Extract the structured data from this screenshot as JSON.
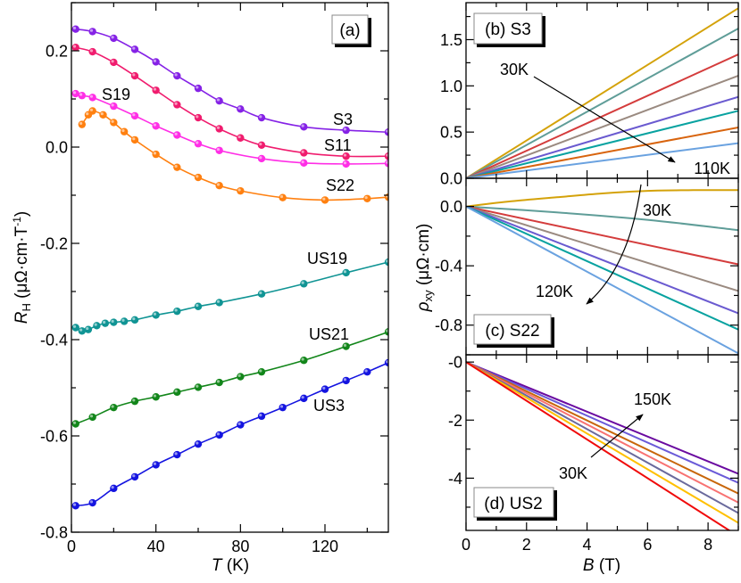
{
  "chart_data": [
    {
      "type": "line",
      "panel_label": "(a)",
      "xlabel": "T (K)",
      "xlabel_italic": "T",
      "xlabel_unit": " (K)",
      "ylabel_main": "R",
      "ylabel_sub": "H",
      "ylabel_unit": " (μΩ·cm·T",
      "ylabel_sup": "-1",
      "ylabel_close": ")",
      "xlim": [
        0,
        150
      ],
      "ylim": [
        -0.8,
        0.3
      ],
      "xticks": [
        0,
        40,
        80,
        120
      ],
      "xtick_labels": [
        "0",
        "40",
        "80",
        "120"
      ],
      "yticks": [
        0.2,
        0.0,
        -0.2,
        -0.4,
        -0.6,
        -0.8
      ],
      "ytick_labels": [
        "0.2",
        "0.0",
        "-0.2",
        "-0.4",
        "-0.6",
        "-0.8"
      ],
      "markers": true,
      "series": [
        {
          "name": "S3",
          "color": "#8522e6",
          "x": [
            2,
            10,
            20,
            30,
            40,
            50,
            60,
            70,
            80,
            90,
            110,
            130,
            150
          ],
          "y": [
            0.245,
            0.24,
            0.226,
            0.203,
            0.177,
            0.148,
            0.122,
            0.096,
            0.079,
            0.061,
            0.042,
            0.035,
            0.031
          ]
        },
        {
          "name": "S11",
          "color": "#f01c6e",
          "x": [
            2,
            10,
            20,
            30,
            40,
            50,
            60,
            70,
            80,
            90,
            110,
            130,
            150
          ],
          "y": [
            0.207,
            0.198,
            0.176,
            0.148,
            0.118,
            0.088,
            0.061,
            0.038,
            0.019,
            0.004,
            -0.012,
            -0.019,
            -0.019
          ]
        },
        {
          "name": "S19",
          "color": "#ff2ee6",
          "x": [
            2,
            5,
            10,
            20,
            30,
            40,
            50,
            60,
            70,
            90,
            110,
            130,
            150
          ],
          "y": [
            0.111,
            0.107,
            0.103,
            0.085,
            0.065,
            0.044,
            0.025,
            0.007,
            -0.007,
            -0.024,
            -0.033,
            -0.035,
            -0.034
          ]
        },
        {
          "name": "S22",
          "color": "#ff8010",
          "x": [
            5,
            8,
            10,
            15,
            20,
            25,
            30,
            40,
            50,
            60,
            70,
            80,
            100,
            120,
            140,
            150
          ],
          "y": [
            0.047,
            0.067,
            0.075,
            0.067,
            0.051,
            0.032,
            0.015,
            -0.015,
            -0.042,
            -0.063,
            -0.08,
            -0.091,
            -0.105,
            -0.11,
            -0.107,
            -0.104
          ]
        },
        {
          "name": "US19",
          "color": "#109494",
          "x": [
            2,
            5,
            8,
            12,
            16,
            20,
            25,
            30,
            40,
            50,
            60,
            70,
            90,
            110,
            130,
            150
          ],
          "y": [
            -0.375,
            -0.382,
            -0.379,
            -0.371,
            -0.366,
            -0.364,
            -0.362,
            -0.359,
            -0.349,
            -0.341,
            -0.331,
            -0.323,
            -0.305,
            -0.284,
            -0.261,
            -0.239
          ]
        },
        {
          "name": "US21",
          "color": "#12861a",
          "x": [
            2,
            10,
            20,
            30,
            40,
            50,
            60,
            70,
            80,
            90,
            110,
            130,
            150
          ],
          "y": [
            -0.575,
            -0.561,
            -0.541,
            -0.528,
            -0.519,
            -0.509,
            -0.499,
            -0.489,
            -0.477,
            -0.467,
            -0.443,
            -0.414,
            -0.384
          ]
        },
        {
          "name": "US3",
          "color": "#1414e0",
          "x": [
            2,
            10,
            20,
            30,
            40,
            50,
            60,
            70,
            80,
            90,
            100,
            110,
            120,
            130,
            140,
            150
          ],
          "y": [
            -0.745,
            -0.739,
            -0.709,
            -0.685,
            -0.66,
            -0.639,
            -0.617,
            -0.598,
            -0.577,
            -0.559,
            -0.541,
            -0.522,
            -0.503,
            -0.485,
            -0.467,
            -0.448
          ]
        }
      ]
    },
    {
      "type": "line",
      "panel_label": "(b) S3",
      "xlim": [
        0,
        9
      ],
      "ylim": [
        0,
        1.9
      ],
      "yticks": [
        0.0,
        0.5,
        1.0,
        1.5
      ],
      "ytick_labels": [
        "0.0",
        "0.5",
        "1.0",
        "1.5"
      ],
      "annotations": [
        "30K",
        "110K"
      ],
      "series": [
        {
          "color": "#d4a20a",
          "x": [
            0,
            9
          ],
          "y": [
            0,
            1.84
          ]
        },
        {
          "color": "#5f9d98",
          "x": [
            0,
            9
          ],
          "y": [
            0,
            1.62
          ]
        },
        {
          "color": "#d43c3c",
          "x": [
            0,
            9
          ],
          "y": [
            0,
            1.34
          ]
        },
        {
          "color": "#9a8a80",
          "x": [
            0,
            9
          ],
          "y": [
            0,
            1.11
          ]
        },
        {
          "color": "#6a5ad0",
          "x": [
            0,
            9
          ],
          "y": [
            0,
            0.88
          ]
        },
        {
          "color": "#08a2a0",
          "x": [
            0,
            9
          ],
          "y": [
            0,
            0.73
          ]
        },
        {
          "color": "#d8640e",
          "x": [
            0,
            9
          ],
          "y": [
            0,
            0.55
          ]
        },
        {
          "color": "#6aa2e0",
          "x": [
            0,
            9
          ],
          "y": [
            0,
            0.38
          ]
        }
      ]
    },
    {
      "type": "line",
      "panel_label": "(c) S22",
      "ylabel_main": "ρ",
      "ylabel_sub": "xy",
      "ylabel_unit": " (μΩ·cm)",
      "xlim": [
        0,
        9
      ],
      "ylim": [
        -1.0,
        0.19
      ],
      "yticks": [
        0.0,
        -0.4,
        -0.8
      ],
      "ytick_labels": [
        "0.0",
        "-0.4",
        "-0.8"
      ],
      "annotations": [
        "30K",
        "120K"
      ],
      "series": [
        {
          "color": "#d4a20a",
          "x": [
            0,
            1.5,
            3,
            4.5,
            6,
            7.5,
            9
          ],
          "y": [
            0,
            0.035,
            0.062,
            0.088,
            0.105,
            0.11,
            0.11
          ]
        },
        {
          "color": "#5f9d98",
          "x": [
            0,
            3,
            6,
            9
          ],
          "y": [
            0,
            -0.04,
            -0.09,
            -0.16
          ]
        },
        {
          "color": "#d43c3c",
          "x": [
            0,
            9
          ],
          "y": [
            0,
            -0.39
          ]
        },
        {
          "color": "#9a8a80",
          "x": [
            0,
            9
          ],
          "y": [
            0,
            -0.57
          ]
        },
        {
          "color": "#6a5ad0",
          "x": [
            0,
            9
          ],
          "y": [
            0,
            -0.72
          ]
        },
        {
          "color": "#08a2a0",
          "x": [
            0,
            9
          ],
          "y": [
            0,
            -0.83
          ]
        },
        {
          "color": "#6aa2e0",
          "x": [
            0,
            9
          ],
          "y": [
            0,
            -0.99
          ]
        }
      ]
    },
    {
      "type": "line",
      "panel_label": "(d) US2",
      "xlabel_italic": "B",
      "xlabel_unit": " (T)",
      "xlim": [
        0,
        9
      ],
      "ylim": [
        -5.8,
        0.25
      ],
      "xticks": [
        0,
        2,
        4,
        6,
        8
      ],
      "xtick_labels": [
        "0",
        "2",
        "4",
        "6",
        "8"
      ],
      "yticks": [
        0,
        -2,
        -4
      ],
      "ytick_labels": [
        "-0",
        "-2",
        "-4"
      ],
      "annotations": [
        "150K",
        "30K"
      ],
      "series": [
        {
          "color": "#6a0aa0",
          "x": [
            0,
            9
          ],
          "y": [
            0,
            -3.85
          ]
        },
        {
          "color": "#6a5ad8",
          "x": [
            0,
            9
          ],
          "y": [
            0,
            -4.16
          ]
        },
        {
          "color": "#c8660a",
          "x": [
            0,
            9
          ],
          "y": [
            0,
            -4.53
          ]
        },
        {
          "color": "#f87272",
          "x": [
            0,
            9
          ],
          "y": [
            0,
            -4.84
          ]
        },
        {
          "color": "#6a6a9c",
          "x": [
            0,
            9
          ],
          "y": [
            0,
            -5.2
          ]
        },
        {
          "color": "#ffc000",
          "x": [
            0,
            9
          ],
          "y": [
            0,
            -5.54
          ]
        },
        {
          "color": "#f00a0a",
          "x": [
            0,
            9
          ],
          "y": [
            0,
            -6.0
          ]
        }
      ]
    }
  ]
}
